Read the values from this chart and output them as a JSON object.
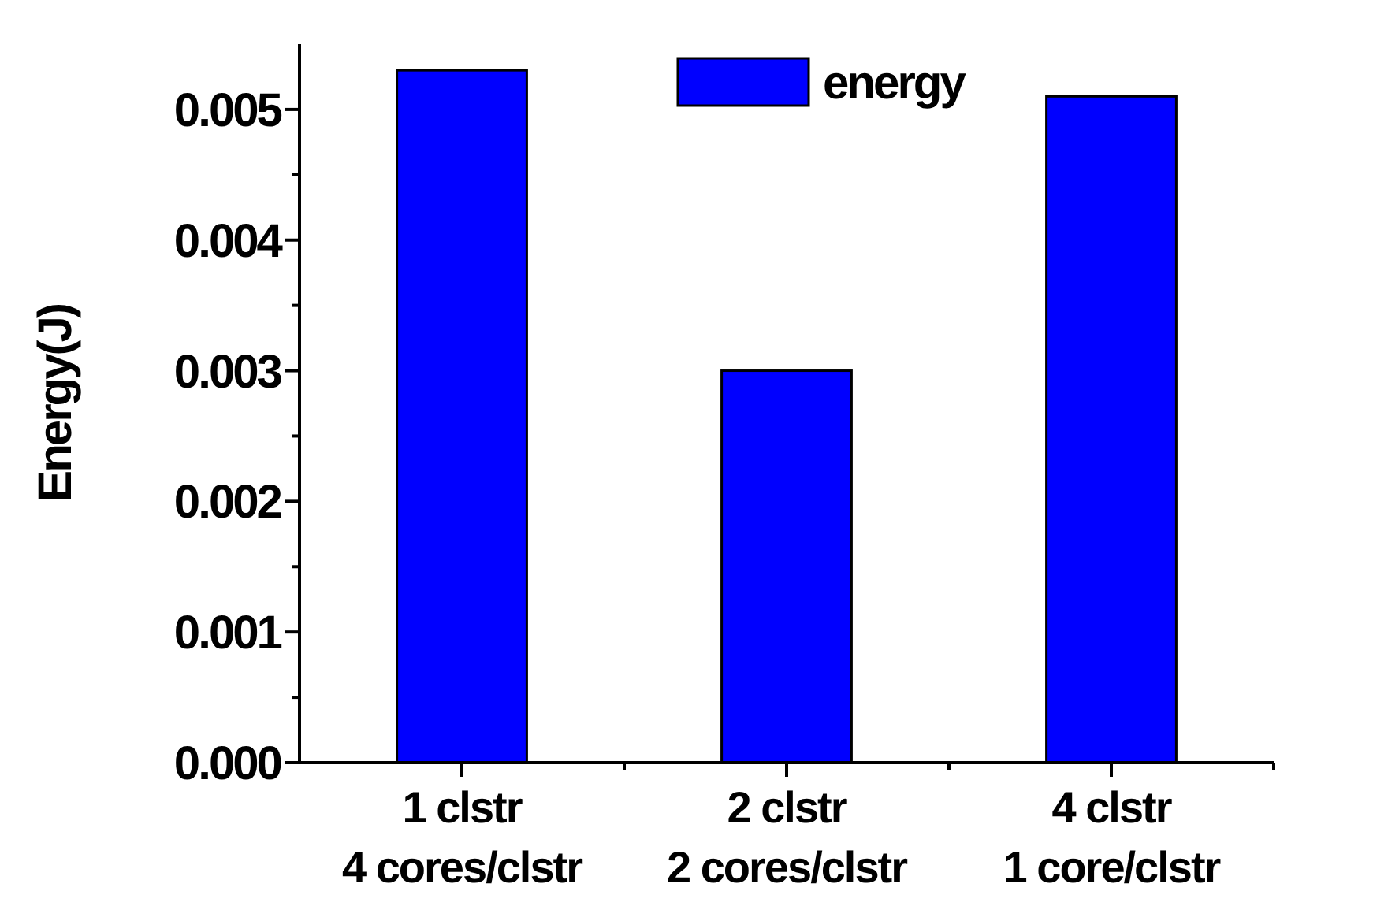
{
  "chart_data": {
    "type": "bar",
    "ylabel": "Energy(J)",
    "categories": [
      "1 clstr\n4 cores/clstr",
      "2 clstr\n2 cores/clstr",
      "4 clstr\n1 core/clstr"
    ],
    "series": [
      {
        "name": "energy",
        "color": "#0000ff",
        "values": [
          0.0053,
          0.003,
          0.0051
        ]
      }
    ],
    "ylim": [
      0,
      0.0055
    ],
    "yticks": [
      {
        "value": 0,
        "label": "0.000"
      },
      {
        "value": 0.0005,
        "label": null
      },
      {
        "value": 0.001,
        "label": "0.001"
      },
      {
        "value": 0.0015,
        "label": null
      },
      {
        "value": 0.002,
        "label": "0.002"
      },
      {
        "value": 0.0025,
        "label": null
      },
      {
        "value": 0.003,
        "label": "0.003"
      },
      {
        "value": 0.0035,
        "label": null
      },
      {
        "value": 0.004,
        "label": "0.004"
      },
      {
        "value": 0.0045,
        "label": null
      },
      {
        "value": 0.005,
        "label": "0.005"
      }
    ],
    "legend": "top",
    "grid": false
  }
}
